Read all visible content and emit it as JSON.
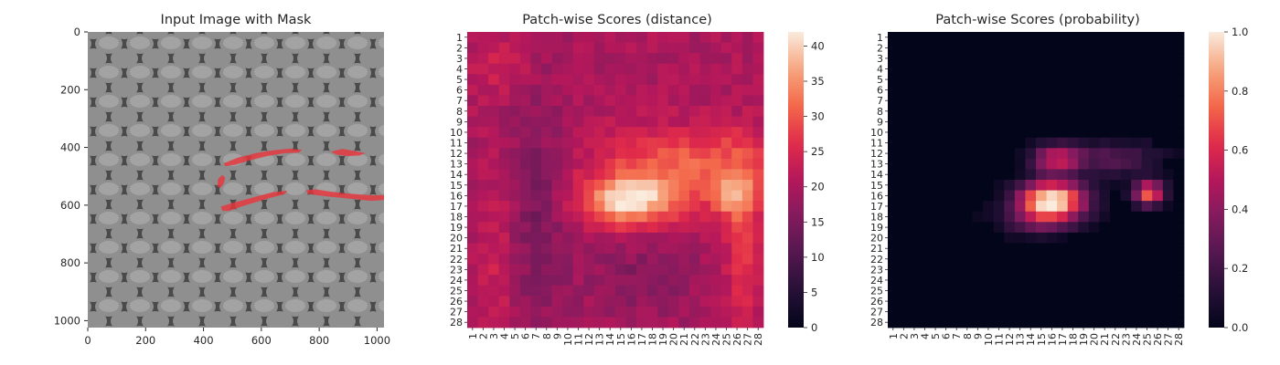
{
  "figure": {
    "panels": [
      {
        "title": "Input Image with Mask"
      },
      {
        "title": "Patch-wise Scores (distance)"
      },
      {
        "title": "Patch-wise Scores (probability)"
      }
    ]
  },
  "colors": {
    "mask": "#e8343c",
    "image_dark": "#3a3a3a",
    "image_light": "#a6a6a6",
    "rocket_low": "#03051a",
    "rocket_high": "#faebdd"
  },
  "chart_data": [
    {
      "type": "image",
      "title": "Input Image with Mask",
      "xlim": [
        0,
        1024
      ],
      "ylim": [
        1024,
        0
      ],
      "xticks": [
        "0",
        "200",
        "400",
        "600",
        "800",
        "1000"
      ],
      "yticks": [
        "0",
        "200",
        "400",
        "600",
        "800",
        "1000"
      ],
      "xtick_values": [
        0,
        200,
        400,
        600,
        800,
        1000
      ],
      "ytick_values": [
        0,
        200,
        400,
        600,
        800,
        1000
      ],
      "mask_regions": [
        {
          "points": [
            [
              470,
              455
            ],
            [
              520,
              435
            ],
            [
              580,
              420
            ],
            [
              640,
              410
            ],
            [
              700,
              404
            ],
            [
              740,
              408
            ],
            [
              730,
              418
            ],
            [
              680,
              420
            ],
            [
              620,
              430
            ],
            [
              560,
              445
            ],
            [
              510,
              460
            ],
            [
              475,
              465
            ]
          ]
        },
        {
          "points": [
            [
              840,
              415
            ],
            [
              880,
              405
            ],
            [
              920,
              412
            ],
            [
              960,
              420
            ],
            [
              940,
              428
            ],
            [
              900,
              430
            ],
            [
              860,
              425
            ]
          ]
        },
        {
          "points": [
            [
              450,
              510
            ],
            [
              465,
              495
            ],
            [
              475,
              505
            ],
            [
              470,
              525
            ],
            [
              458,
              540
            ],
            [
              448,
              535
            ]
          ]
        },
        {
          "points": [
            [
              460,
              605
            ],
            [
              500,
              592
            ],
            [
              540,
              582
            ],
            [
              590,
              568
            ],
            [
              640,
              555
            ],
            [
              690,
              550
            ],
            [
              680,
              562
            ],
            [
              630,
              575
            ],
            [
              580,
              590
            ],
            [
              530,
              605
            ],
            [
              490,
              620
            ],
            [
              465,
              620
            ]
          ]
        },
        {
          "points": [
            [
              755,
              548
            ],
            [
              790,
              545
            ],
            [
              830,
              552
            ],
            [
              880,
              558
            ],
            [
              930,
              562
            ],
            [
              990,
              566
            ],
            [
              1024,
              565
            ],
            [
              1024,
              582
            ],
            [
              980,
              585
            ],
            [
              930,
              580
            ],
            [
              880,
              575
            ],
            [
              830,
              570
            ],
            [
              790,
              565
            ],
            [
              760,
              560
            ]
          ]
        }
      ]
    },
    {
      "type": "heatmap",
      "title": "Patch-wise Scores (distance)",
      "xticks": [
        "1",
        "2",
        "3",
        "4",
        "5",
        "6",
        "7",
        "8",
        "9",
        "10",
        "11",
        "12",
        "13",
        "14",
        "15",
        "16",
        "17",
        "18",
        "19",
        "20",
        "21",
        "22",
        "23",
        "24",
        "25",
        "26",
        "27",
        "28"
      ],
      "yticks": [
        "1",
        "2",
        "3",
        "4",
        "5",
        "6",
        "7",
        "8",
        "9",
        "10",
        "11",
        "12",
        "13",
        "14",
        "15",
        "16",
        "17",
        "18",
        "19",
        "20",
        "21",
        "22",
        "23",
        "24",
        "25",
        "26",
        "27",
        "28"
      ],
      "colorbar": {
        "min": 0,
        "max": 42,
        "ticks": [
          "0",
          "5",
          "10",
          "15",
          "20",
          "25",
          "30",
          "35",
          "40"
        ],
        "tick_values": [
          0,
          5,
          10,
          15,
          20,
          25,
          30,
          35,
          40
        ]
      },
      "model": {
        "base": 20,
        "blobs": [
          {
            "cx": 16.0,
            "cy": 16.5,
            "sx": 3.0,
            "sy": 1.6,
            "amp": 21
          },
          {
            "cx": 25.5,
            "cy": 16.2,
            "sx": 1.6,
            "sy": 1.3,
            "amp": 12
          },
          {
            "cx": 21.5,
            "cy": 13.0,
            "sx": 6.0,
            "sy": 2.3,
            "amp": 11
          },
          {
            "cx": 26.5,
            "cy": 21.0,
            "sx": 1.2,
            "sy": 6.0,
            "amp": 7
          },
          {
            "cx": 3.5,
            "cy": 22.0,
            "sx": 1.2,
            "sy": 5.0,
            "amp": 4
          },
          {
            "cx": 3.5,
            "cy": 4.0,
            "sx": 2.0,
            "sy": 2.0,
            "amp": 4
          },
          {
            "cx": 7.0,
            "cy": 17.0,
            "sx": 2.0,
            "sy": 8.0,
            "amp": -5
          },
          {
            "cx": 17.0,
            "cy": 24.0,
            "sx": 4.0,
            "sy": 2.5,
            "amp": -4
          }
        ]
      }
    },
    {
      "type": "heatmap",
      "title": "Patch-wise Scores (probability)",
      "xticks": [
        "1",
        "2",
        "3",
        "4",
        "5",
        "6",
        "7",
        "8",
        "9",
        "10",
        "11",
        "12",
        "13",
        "14",
        "15",
        "16",
        "17",
        "18",
        "19",
        "20",
        "21",
        "22",
        "23",
        "24",
        "25",
        "26",
        "27",
        "28"
      ],
      "yticks": [
        "1",
        "2",
        "3",
        "4",
        "5",
        "6",
        "7",
        "8",
        "9",
        "10",
        "11",
        "12",
        "13",
        "14",
        "15",
        "16",
        "17",
        "18",
        "19",
        "20",
        "21",
        "22",
        "23",
        "24",
        "25",
        "26",
        "27",
        "28"
      ],
      "colorbar": {
        "min": 0.0,
        "max": 1.0,
        "ticks": [
          "0.0",
          "0.2",
          "0.4",
          "0.6",
          "0.8",
          "1.0"
        ],
        "tick_values": [
          0.0,
          0.2,
          0.4,
          0.6,
          0.8,
          1.0
        ]
      },
      "model": {
        "base": 0,
        "blobs": [
          {
            "cx": 16.0,
            "cy": 16.5,
            "sx": 2.2,
            "sy": 1.3,
            "amp": 1.05
          },
          {
            "cx": 25.2,
            "cy": 15.8,
            "sx": 1.0,
            "sy": 0.8,
            "amp": 0.75
          },
          {
            "cx": 16.5,
            "cy": 12.5,
            "sx": 1.6,
            "sy": 0.9,
            "amp": 0.55
          },
          {
            "cx": 22.0,
            "cy": 12.5,
            "sx": 3.0,
            "sy": 1.2,
            "amp": 0.25
          },
          {
            "cx": 14.5,
            "cy": 18.5,
            "sx": 2.5,
            "sy": 1.0,
            "amp": 0.2
          }
        ],
        "threshold": 0.04
      }
    }
  ]
}
